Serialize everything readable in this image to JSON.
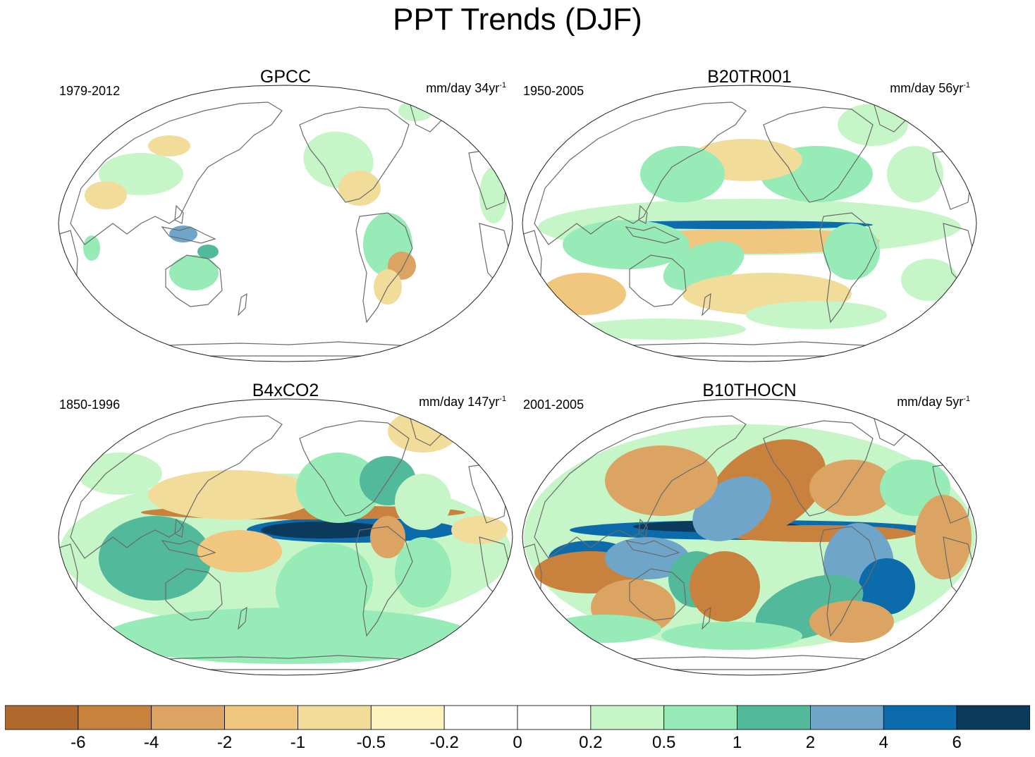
{
  "title": "PPT Trends (DJF)",
  "panels": [
    {
      "title": "GPCC",
      "period": "1979-2012",
      "units": "mm/day 34yr",
      "units_exp": "-1",
      "pattern": "gpcc"
    },
    {
      "title": "B20TR001",
      "period": "1950-2005",
      "units": "mm/day 56yr",
      "units_exp": "-1",
      "pattern": "b20"
    },
    {
      "title": "B4xCO2",
      "period": "1850-1996",
      "units": "mm/day 147yr",
      "units_exp": "-1",
      "pattern": "b4x"
    },
    {
      "title": "B10THOCN",
      "period": "2001-2005",
      "units": "mm/day 5yr",
      "units_exp": "-1",
      "pattern": "b10"
    }
  ],
  "colorbar": {
    "labels": [
      "-6",
      "-4",
      "-2",
      "-1",
      "-0.5",
      "-0.2",
      "0",
      "0.2",
      "0.5",
      "1",
      "2",
      "4",
      "6"
    ],
    "colors": [
      "#b1692e",
      "#c9823e",
      "#dba462",
      "#f1c77f",
      "#f2dc99",
      "#fbf2bd",
      "#ffffff",
      "#ffffff",
      "#c6f6c8",
      "#97ebb7",
      "#52b99b",
      "#6fa5c8",
      "#0b6bab",
      "#0b3a5c"
    ]
  }
}
